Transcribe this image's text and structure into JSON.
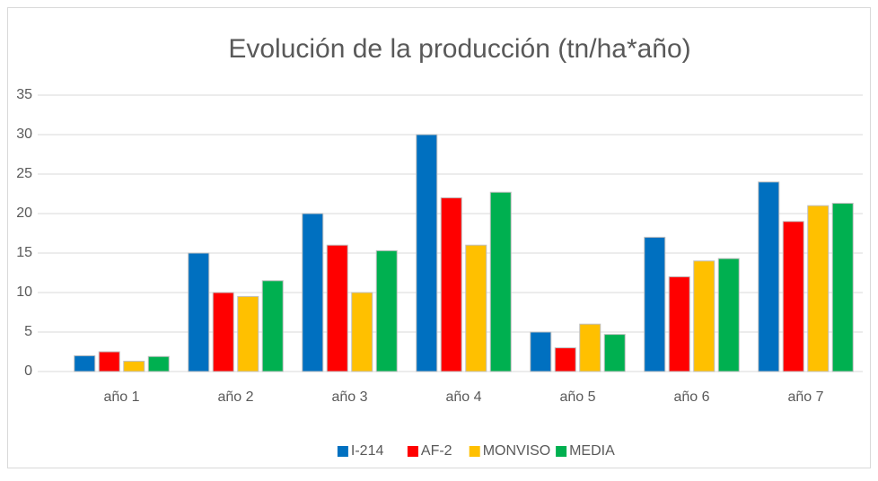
{
  "chart_data": {
    "type": "bar",
    "title": "Evolución de la producción (tn/ha*año)",
    "categories": [
      "año 1",
      "año 2",
      "año 3",
      "año 4",
      "año 5",
      "año 6",
      "año 7"
    ],
    "series": [
      {
        "name": "I-214",
        "color": "#0070c0",
        "values": [
          2,
          15,
          20,
          30,
          5,
          17,
          24
        ]
      },
      {
        "name": "AF-2",
        "color": "#ff0000",
        "values": [
          2.5,
          10,
          16,
          22,
          3,
          12,
          19
        ]
      },
      {
        "name": "MONVISO",
        "color": "#ffc000",
        "values": [
          1.3,
          9.5,
          10,
          16,
          6,
          14,
          21
        ]
      },
      {
        "name": "MEDIA",
        "color": "#00b050",
        "values": [
          1.9,
          11.5,
          15.3,
          22.7,
          4.7,
          14.3,
          21.3
        ]
      }
    ],
    "ylim": [
      0,
      35
    ],
    "yticks": [
      0,
      5,
      10,
      15,
      20,
      25,
      30,
      35
    ],
    "grid": true,
    "legend": "bottom"
  }
}
